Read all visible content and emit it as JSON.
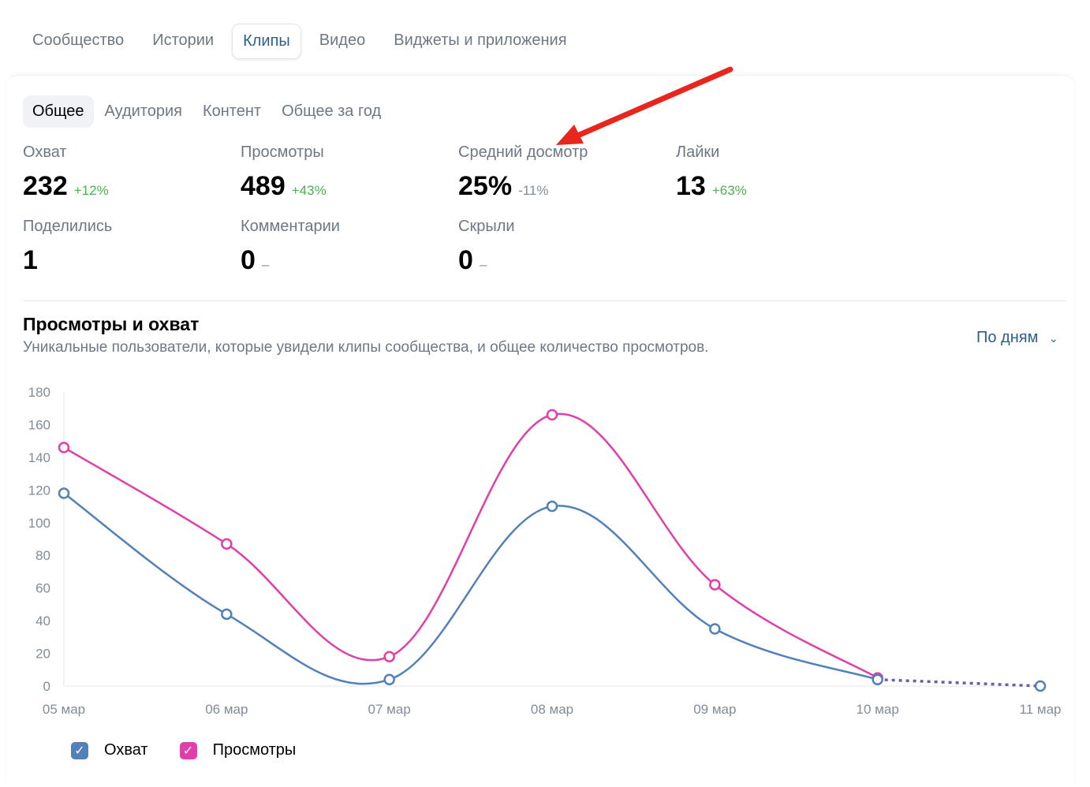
{
  "top_tabs": [
    "Сообщество",
    "Истории",
    "Клипы",
    "Видео",
    "Виджеты и приложения"
  ],
  "sub_tabs": [
    "Общее",
    "Аудитория",
    "Контент",
    "Общее за год"
  ],
  "stats": [
    {
      "label": "Охват",
      "value": "232",
      "delta": "+12%",
      "trend": "up"
    },
    {
      "label": "Просмотры",
      "value": "489",
      "delta": "+43%",
      "trend": "up"
    },
    {
      "label": "Средний досмотр",
      "value": "25%",
      "delta": "-11%",
      "trend": "down"
    },
    {
      "label": "Лайки",
      "value": "13",
      "delta": "+63%",
      "trend": "up"
    },
    {
      "label": "Поделились",
      "value": "1",
      "delta": "",
      "trend": "none"
    },
    {
      "label": "Комментарии",
      "value": "0",
      "delta": "–",
      "trend": "none"
    },
    {
      "label": "Скрыли",
      "value": "0",
      "delta": "–",
      "trend": "none"
    }
  ],
  "chart_section": {
    "title": "Просмотры и охват",
    "subtitle": "Уникальные пользователи, которые увидели клипы сообщества, и общее количество просмотров.",
    "period": "По дням"
  },
  "colors": {
    "reach": "#5181b8",
    "views": "#e03fab",
    "accent": "#2c5d8f",
    "arrow": "#e8261e"
  },
  "chart_data": {
    "type": "line",
    "x": [
      "05 мар",
      "06 мар",
      "07 мар",
      "08 мар",
      "09 мар",
      "10 мар",
      "11 мар"
    ],
    "yticks": [
      0,
      20,
      40,
      60,
      80,
      100,
      120,
      140,
      160,
      180
    ],
    "ylim": [
      0,
      180
    ],
    "series": [
      {
        "name": "Охват",
        "values": [
          118,
          44,
          4,
          110,
          35,
          4,
          0
        ]
      },
      {
        "name": "Просмотры",
        "values": [
          146,
          87,
          18,
          166,
          62,
          5,
          null
        ]
      }
    ],
    "legend": "bottom-left"
  }
}
